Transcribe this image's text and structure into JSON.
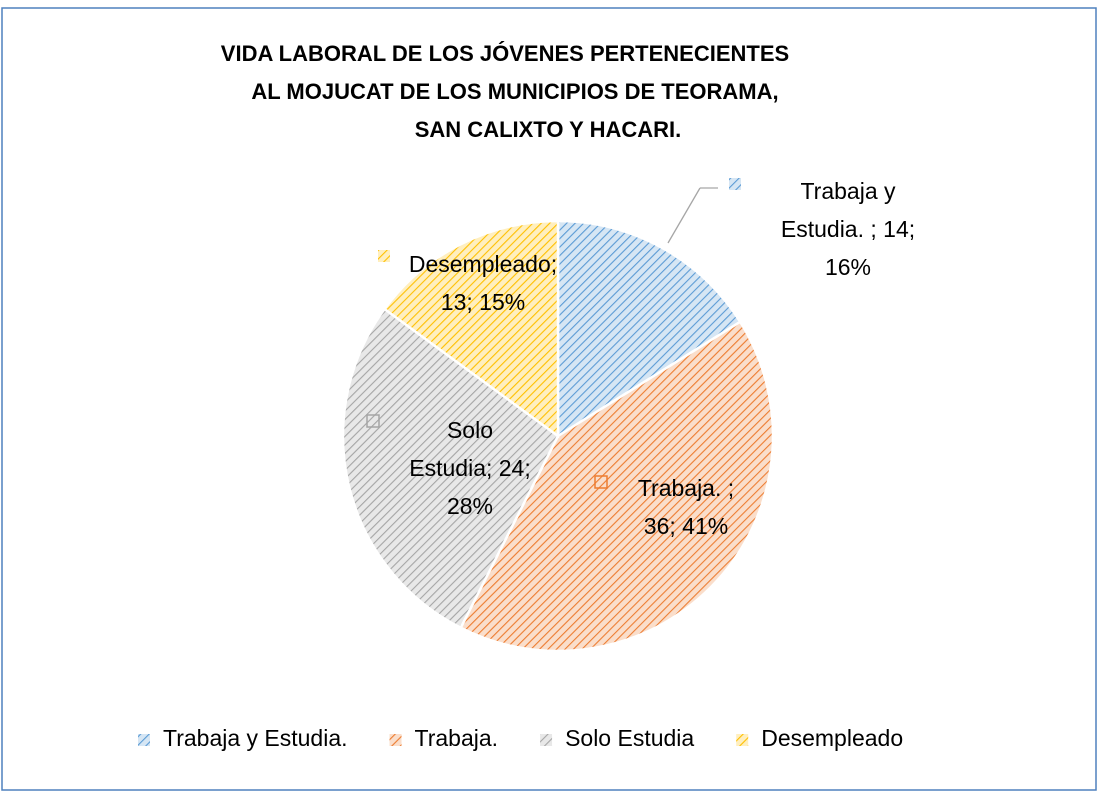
{
  "chart_data": {
    "type": "pie",
    "title": [
      "VIDA LABORAL  DE LOS JÓVENES PERTENECIENTES",
      "AL MOJUCAT DE LOS MUNICIPIOS DE TEORAMA,",
      "SAN CALIXTO Y HACARI."
    ],
    "categories": [
      "Trabaja y Estudia.",
      "Trabaja.",
      "Solo Estudia",
      "Desempleado"
    ],
    "values": [
      14,
      36,
      24,
      13
    ],
    "value_labels": [
      [
        "Trabaja y",
        "Estudia. ; 14;",
        "16%"
      ],
      [
        "Trabaja. ;",
        "36; 41%"
      ],
      [
        "Solo",
        "Estudia; 24;",
        "28%"
      ],
      [
        "Desempleado;",
        "13; 15%"
      ]
    ],
    "colors": [
      "#5b9bd5",
      "#ed7d31",
      "#a5a5a5",
      "#ffc000"
    ],
    "legend": "bottom"
  }
}
